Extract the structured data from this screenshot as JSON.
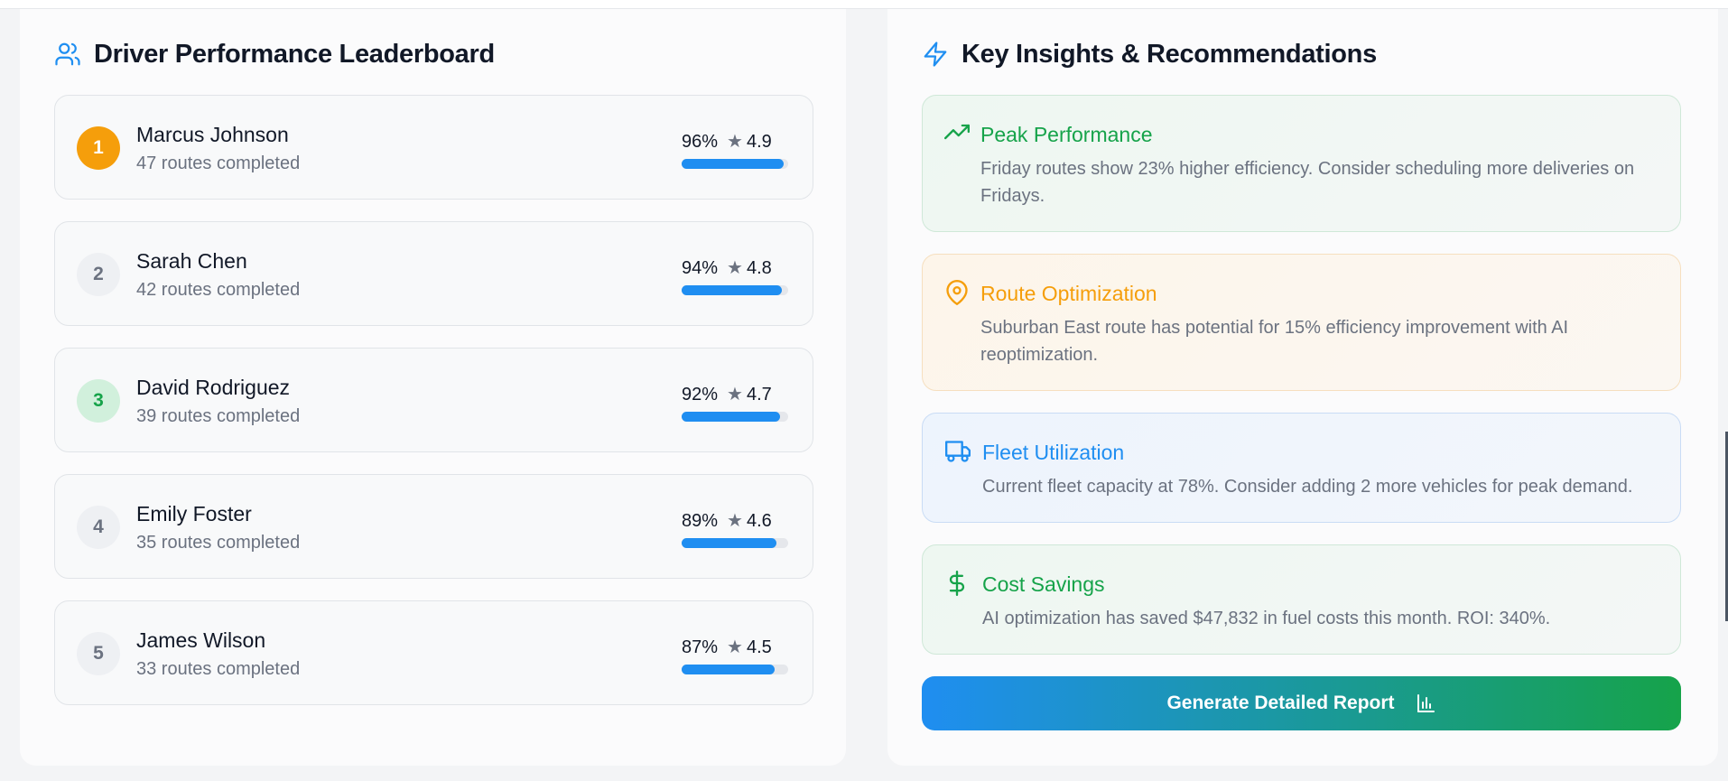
{
  "leaderboard": {
    "title": "Driver Performance Leaderboard",
    "icon": "users-icon",
    "drivers": [
      {
        "rank": "1",
        "name": "Marcus Johnson",
        "routes": "47 routes completed",
        "score": "96%",
        "rating": "4.9",
        "progress": 0.96,
        "badge_bg": "#f59e0b",
        "badge_fg": "#ffffff"
      },
      {
        "rank": "2",
        "name": "Sarah Chen",
        "routes": "42 routes completed",
        "score": "94%",
        "rating": "4.8",
        "progress": 0.94,
        "badge_bg": "#eef0f3",
        "badge_fg": "#6b7280"
      },
      {
        "rank": "3",
        "name": "David Rodriguez",
        "routes": "39 routes completed",
        "score": "92%",
        "rating": "4.7",
        "progress": 0.92,
        "badge_bg": "#d1f0dc",
        "badge_fg": "#16a34a"
      },
      {
        "rank": "4",
        "name": "Emily Foster",
        "routes": "35 routes completed",
        "score": "89%",
        "rating": "4.6",
        "progress": 0.89,
        "badge_bg": "#eef0f3",
        "badge_fg": "#6b7280"
      },
      {
        "rank": "5",
        "name": "James Wilson",
        "routes": "33 routes completed",
        "score": "87%",
        "rating": "4.5",
        "progress": 0.87,
        "badge_bg": "#eef0f3",
        "badge_fg": "#6b7280"
      }
    ]
  },
  "insights": {
    "title": "Key Insights & Recommendations",
    "icon": "lightning-icon",
    "cards": [
      {
        "title": "Peak Performance",
        "desc": "Friday routes show 23% higher efficiency. Consider scheduling more deliveries on Fridays.",
        "icon": "trending-up-icon",
        "color": "#16a34a"
      },
      {
        "title": "Route Optimization",
        "desc": "Suburban East route has potential for 15% efficiency improvement with AI reoptimization.",
        "icon": "map-pin-icon",
        "color": "#f59e0b"
      },
      {
        "title": "Fleet Utilization",
        "desc": "Current fleet capacity at 78%. Consider adding 2 more vehicles for peak demand.",
        "icon": "truck-icon",
        "color": "#1f8ef1"
      },
      {
        "title": "Cost Savings",
        "desc": "AI optimization has saved $47,832 in fuel costs this month. ROI: 340%.",
        "icon": "dollar-icon",
        "color": "#16a34a"
      }
    ]
  },
  "report_button": {
    "label": "Generate Detailed Report",
    "icon": "bar-chart-icon"
  },
  "star_glyph": "★",
  "colors": {
    "accent_blue": "#1f8ef1",
    "accent_green": "#16a34a",
    "accent_orange": "#f59e0b"
  }
}
